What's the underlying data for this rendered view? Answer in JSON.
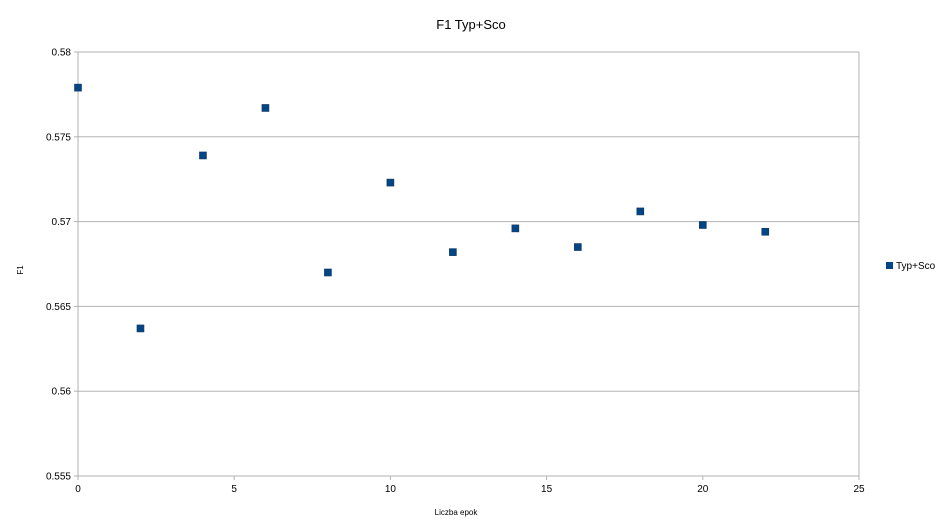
{
  "chart_data": {
    "type": "scatter",
    "title": "F1 Typ+Sco",
    "xlabel": "Liczba epok",
    "ylabel": "F1",
    "xlim": [
      0,
      25
    ],
    "ylim": [
      0.555,
      0.58
    ],
    "x_ticks": [
      0,
      5,
      10,
      15,
      20,
      25
    ],
    "y_ticks": [
      0.555,
      0.56,
      0.565,
      0.57,
      0.575,
      0.58
    ],
    "x_tick_labels": [
      "0",
      "5",
      "10",
      "15",
      "20",
      "25"
    ],
    "y_tick_labels": [
      "0.555",
      "0.56",
      "0.565",
      "0.57",
      "0.575",
      "0.58"
    ],
    "grid": "horizontal",
    "legend_position": "right",
    "series": [
      {
        "name": "Typ+Sco",
        "color": "#004586",
        "marker": "square",
        "x": [
          0,
          2,
          4,
          6,
          8,
          10,
          12,
          14,
          16,
          18,
          20,
          22
        ],
        "y": [
          0.5779,
          0.5637,
          0.5739,
          0.5767,
          0.567,
          0.5723,
          0.5682,
          0.5696,
          0.5685,
          0.5706,
          0.5698,
          0.5694
        ]
      }
    ]
  }
}
